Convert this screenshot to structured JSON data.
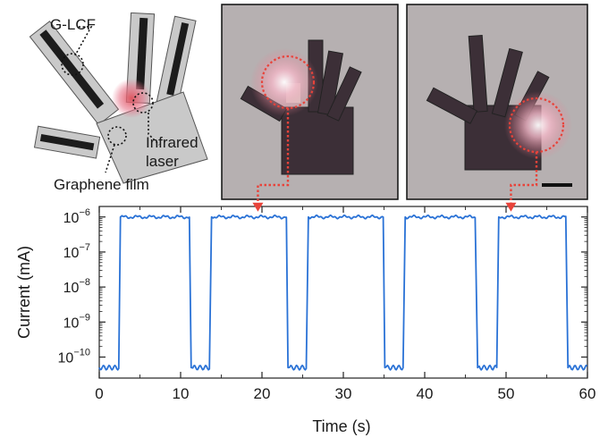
{
  "diagram": {
    "labels": {
      "glcf": "G-LCF",
      "infrared_line1": "Infrared",
      "infrared_line2": "laser",
      "graphene": "Graphene film"
    }
  },
  "colors": {
    "trace": "#2a72d6",
    "arrow": "#e8433a",
    "laser_glow": "#e8758a",
    "hand_fill": "#c9c9c9",
    "stripe": "#1c1c1c",
    "photo_bg": "#a9a4a4"
  },
  "chart_data": {
    "type": "line",
    "xlabel": "Time (s)",
    "ylabel": "Current (mA)",
    "y_scale": "log",
    "xlim": [
      0,
      60
    ],
    "ylim_exponent": [
      -10.6,
      -5.7
    ],
    "x_ticks": [
      0,
      10,
      20,
      30,
      40,
      50,
      60
    ],
    "x_tick_labels": [
      "0",
      "10",
      "20",
      "30",
      "40",
      "50",
      "60"
    ],
    "y_tick_exponents": [
      -10,
      -9,
      -8,
      -7,
      -6
    ],
    "y_tick_labels": [
      "10",
      "10",
      "10",
      "10",
      "10"
    ],
    "y_tick_sups": [
      "−10",
      "−9",
      "−8",
      "−7",
      "−6"
    ],
    "low_level": 5e-11,
    "high_level": 1e-06,
    "on_intervals": [
      [
        2.6,
        11.3
      ],
      [
        13.8,
        23.2
      ],
      [
        25.7,
        35.1
      ],
      [
        37.6,
        46.5
      ],
      [
        49.1,
        57.6
      ]
    ],
    "annotations": [
      {
        "target_x": 19.5,
        "from_photo": 0
      },
      {
        "target_x": 50.6,
        "from_photo": 1
      }
    ]
  }
}
